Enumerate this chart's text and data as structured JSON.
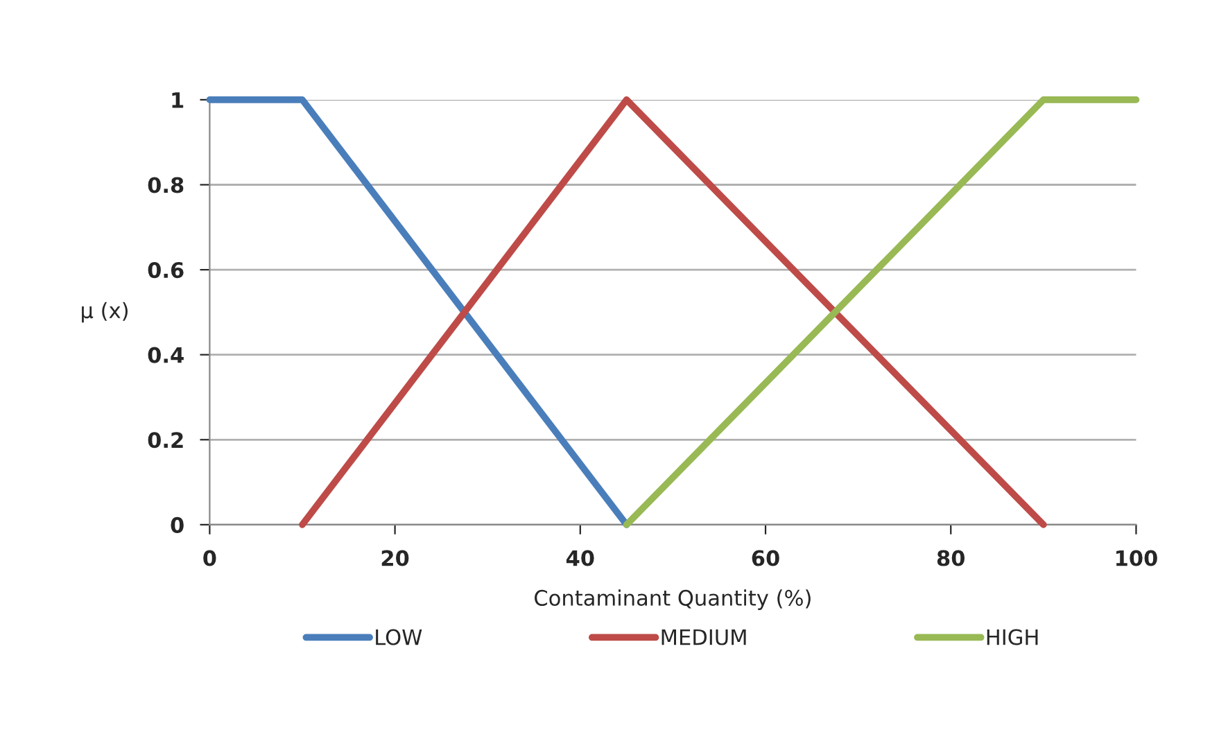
{
  "chart_data": {
    "type": "line",
    "xlabel": "Contaminant Quantity (%)",
    "ylabel": "μ (x)",
    "xlim": [
      0,
      100
    ],
    "xticks": [
      0,
      20,
      40,
      60,
      80,
      100
    ],
    "ylim": [
      0,
      1
    ],
    "yticks": [
      0,
      0.2,
      0.4,
      0.6,
      0.8,
      1
    ],
    "grid": "y",
    "legend": "bottom",
    "marker": "none",
    "line_style": "solid",
    "series": [
      {
        "name": "LOW",
        "color": "#4a7ebb",
        "x": [
          0,
          10,
          45
        ],
        "values": [
          1,
          1,
          0
        ]
      },
      {
        "name": "MEDIUM",
        "color": "#be4b48",
        "x": [
          10,
          45,
          90
        ],
        "values": [
          0,
          1,
          0
        ]
      },
      {
        "name": "HIGH",
        "color": "#98b954",
        "x": [
          45,
          90,
          100
        ],
        "values": [
          0,
          1,
          1
        ]
      }
    ]
  }
}
